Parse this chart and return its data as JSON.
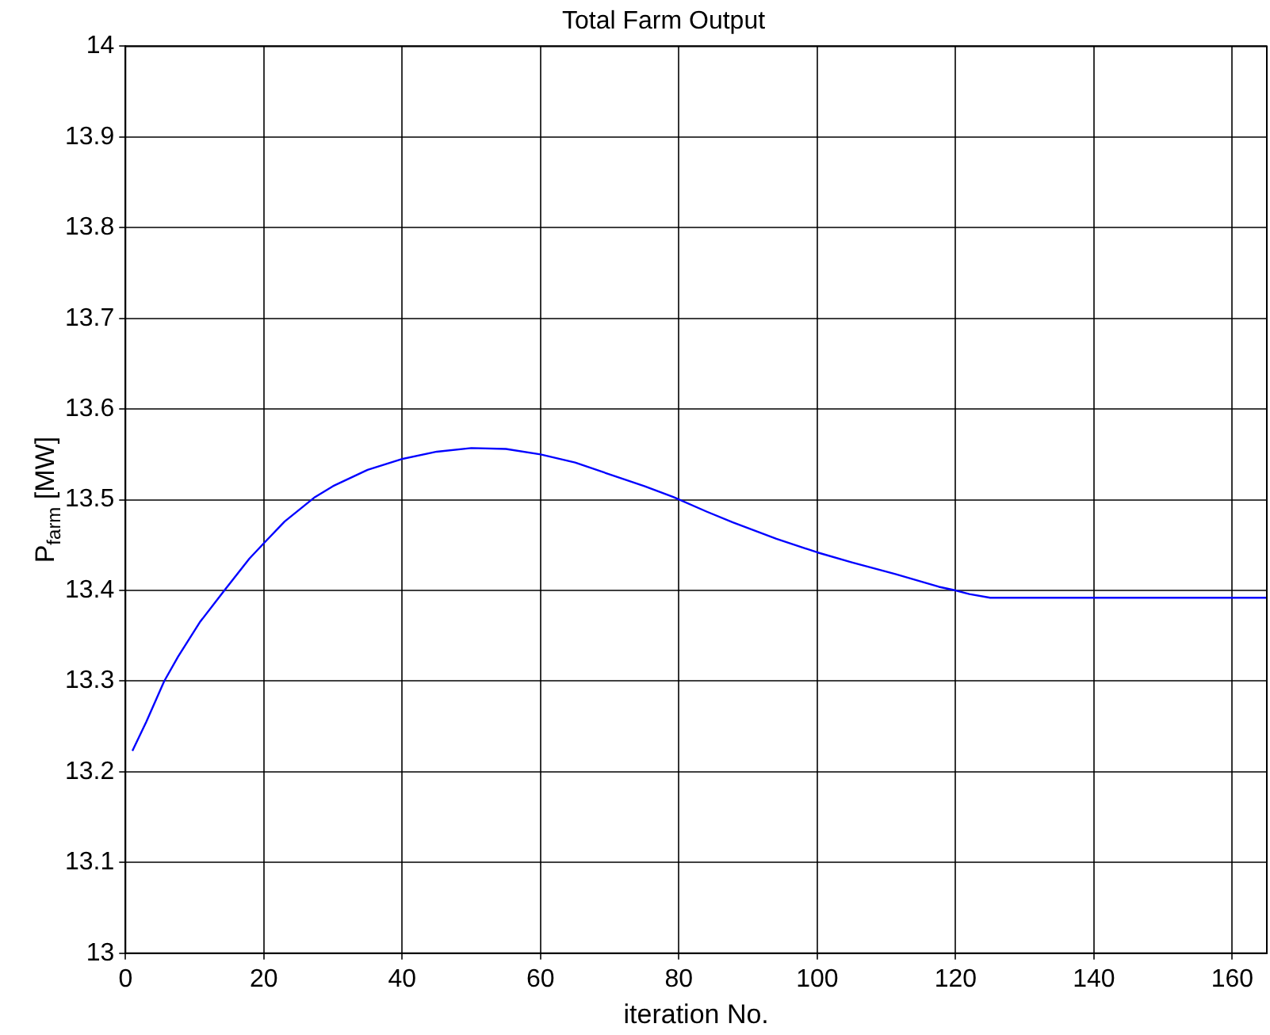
{
  "chart_data": {
    "type": "line",
    "title": "Total Farm Output",
    "xlabel": "iteration No.",
    "ylabel": "P$_{farm}$ [MW]",
    "x": [
      1,
      3,
      5.6,
      7.6,
      10.75,
      14.3,
      17.9,
      20,
      23,
      27.4,
      30,
      35,
      40,
      45,
      50,
      55,
      60,
      65,
      70,
      75,
      79.2,
      84,
      87.8,
      94.1,
      100,
      105,
      111.3,
      117.6,
      120,
      122,
      125,
      130,
      140,
      150,
      160,
      165
    ],
    "series": [
      {
        "color": "#0000ff",
        "values": [
          13.223,
          13.255,
          13.3,
          13.327,
          13.365,
          13.4,
          13.435,
          13.452,
          13.476,
          13.503,
          13.515,
          13.533,
          13.545,
          13.553,
          13.557,
          13.556,
          13.55,
          13.541,
          13.528,
          13.515,
          13.503,
          13.487,
          13.475,
          13.457,
          13.442,
          13.431,
          13.418,
          13.404,
          13.4,
          13.396,
          13.392,
          13.392,
          13.392,
          13.392,
          13.392,
          13.392
        ]
      }
    ],
    "xlim": [
      0,
      165
    ],
    "xticks": [
      0,
      20,
      40,
      60,
      80,
      100,
      120,
      140,
      160
    ],
    "ylim": [
      13,
      14
    ],
    "yticks": [
      13,
      13.1,
      13.2,
      13.3,
      13.4,
      13.5,
      13.6,
      13.7,
      13.8,
      13.9,
      14
    ],
    "grid": true,
    "line_style": "solid",
    "marker": "none",
    "legend": false
  }
}
